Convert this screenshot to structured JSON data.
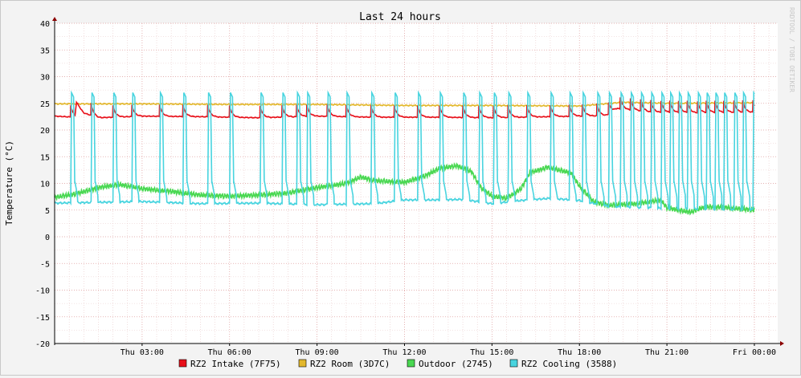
{
  "chart_data": {
    "type": "line",
    "title": "Last 24 hours",
    "ylabel": "Temperature (°C)",
    "watermark": "RRDTOOL / TOBI OETIKER",
    "ylim": [
      -20,
      40
    ],
    "xlim_hours": [
      0,
      24.8
    ],
    "yticks": [
      40,
      35,
      30,
      25,
      20,
      15,
      10,
      5,
      0,
      -5,
      -10,
      -15,
      -20
    ],
    "xticks": [
      {
        "label": "Thu 03:00",
        "h": 3
      },
      {
        "label": "Thu 06:00",
        "h": 6
      },
      {
        "label": "Thu 09:00",
        "h": 9
      },
      {
        "label": "Thu 12:00",
        "h": 12
      },
      {
        "label": "Thu 15:00",
        "h": 15
      },
      {
        "label": "Thu 18:00",
        "h": 18
      },
      {
        "label": "Thu 21:00",
        "h": 21
      },
      {
        "label": "Fri 00:00",
        "h": 24
      }
    ],
    "grid": true,
    "legend_position": "bottom",
    "series": [
      {
        "name": "RZ2 Intake (7F75)",
        "color": "#e8101a",
        "points": [
          [
            0,
            22.6
          ],
          [
            0.7,
            22.4
          ],
          [
            0.75,
            25
          ],
          [
            1.0,
            23.2
          ],
          [
            1.5,
            22.3
          ],
          [
            3,
            22.6
          ],
          [
            5,
            22.5
          ],
          [
            7,
            22.3
          ],
          [
            9,
            22.6
          ],
          [
            11,
            22.4
          ],
          [
            13,
            22.4
          ],
          [
            15,
            22.3
          ],
          [
            17,
            22.5
          ],
          [
            18.9,
            22.7
          ],
          [
            19.3,
            24
          ],
          [
            20.5,
            23.3
          ],
          [
            22,
            23.2
          ],
          [
            24,
            23.3
          ]
        ]
      },
      {
        "name": "RZ2 Room (3D7C)",
        "color": "#e3b82d",
        "points": [
          [
            0,
            24.9
          ],
          [
            3,
            24.9
          ],
          [
            6,
            24.8
          ],
          [
            9,
            24.8
          ],
          [
            12,
            24.6
          ],
          [
            15,
            24.6
          ],
          [
            18,
            24.5
          ],
          [
            19.5,
            25.2
          ],
          [
            21,
            25
          ],
          [
            24,
            25.1
          ]
        ]
      },
      {
        "name": "Outdoor (2745)",
        "color": "#4ad852",
        "points": [
          [
            0,
            7.4
          ],
          [
            0.7,
            8.0
          ],
          [
            1.5,
            9.2
          ],
          [
            2.2,
            9.8
          ],
          [
            3,
            9.0
          ],
          [
            4,
            8.5
          ],
          [
            5,
            7.8
          ],
          [
            6,
            7.6
          ],
          [
            7,
            7.8
          ],
          [
            8,
            8.2
          ],
          [
            9,
            9.2
          ],
          [
            10,
            10.0
          ],
          [
            10.5,
            11.2
          ],
          [
            11,
            10.5
          ],
          [
            12,
            10.2
          ],
          [
            12.7,
            11.4
          ],
          [
            13.2,
            12.8
          ],
          [
            13.8,
            13.3
          ],
          [
            14.3,
            12.2
          ],
          [
            14.6,
            9.3
          ],
          [
            15.0,
            7.6
          ],
          [
            15.5,
            7.2
          ],
          [
            16.0,
            9.0
          ],
          [
            16.3,
            12.0
          ],
          [
            16.9,
            13.0
          ],
          [
            17.7,
            12.0
          ],
          [
            18,
            9.5
          ],
          [
            18.5,
            6.5
          ],
          [
            19,
            5.9
          ],
          [
            20,
            6.2
          ],
          [
            20.8,
            6.9
          ],
          [
            21,
            5.4
          ],
          [
            21.8,
            4.6
          ],
          [
            22.3,
            5.6
          ],
          [
            23,
            5.5
          ],
          [
            24,
            5.0
          ]
        ]
      },
      {
        "name": "RZ2 Cooling (3588)",
        "color": "#48d4df",
        "start_hours": [
          0.55,
          1.25,
          2.0,
          2.65,
          3.6,
          4.4,
          5.25,
          6.0,
          7.05,
          7.8,
          8.3,
          8.65,
          9.35,
          10.0,
          10.85,
          11.65,
          12.45,
          13.2,
          14.0,
          14.55,
          15.05,
          15.55,
          16.2,
          17.0,
          17.65,
          18.1,
          18.6,
          19.0,
          19.4,
          19.75,
          20.1,
          20.45,
          20.8,
          21.1,
          21.4,
          21.7,
          22.05,
          22.35,
          22.65,
          22.95,
          23.3,
          23.6,
          23.95
        ],
        "peak": 27,
        "baseline": [
          [
            0,
            6.3
          ],
          [
            3,
            6.6
          ],
          [
            5,
            6.2
          ],
          [
            7,
            6.3
          ],
          [
            9,
            6.0
          ],
          [
            11,
            6.2
          ],
          [
            12,
            6.9
          ],
          [
            13,
            6.9
          ],
          [
            14,
            7.0
          ],
          [
            15,
            6.2
          ],
          [
            16,
            6.8
          ],
          [
            17,
            7.2
          ],
          [
            18,
            6.8
          ],
          [
            19,
            5.7
          ],
          [
            21,
            5.3
          ],
          [
            24,
            5.1
          ]
        ]
      }
    ],
    "legend": [
      {
        "label": "RZ2 Intake (7F75)",
        "color": "#e8101a"
      },
      {
        "label": "RZ2 Room (3D7C)",
        "color": "#e3b82d"
      },
      {
        "label": "Outdoor (2745)",
        "color": "#4ad852"
      },
      {
        "label": "RZ2 Cooling (3588)",
        "color": "#48d4df"
      }
    ]
  }
}
